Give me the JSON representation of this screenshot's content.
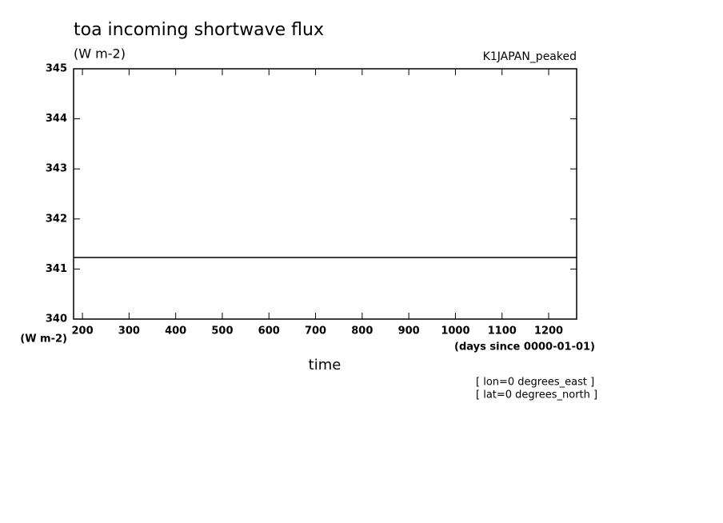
{
  "chart_data": {
    "type": "line",
    "title": "toa incoming shortwave flux",
    "subtitle": "(W m-2)",
    "dataset": "K1JAPAN_peaked",
    "y_label": "(W m-2)",
    "x_units": "(days since 0000-01-01)",
    "x_label": "time",
    "annotations": [
      "[ lon=0 degrees_east ]",
      "[ lat=0 degrees_north ]"
    ],
    "x": [
      181,
      1260
    ],
    "values": [
      341.23,
      341.23
    ],
    "color": "#000000",
    "xlim": [
      181,
      1260
    ],
    "xticks": [
      200,
      300,
      400,
      500,
      600,
      700,
      800,
      900,
      1000,
      1100,
      1200
    ],
    "ylim": [
      340,
      345
    ],
    "yticks": [
      340,
      341,
      342,
      343,
      344,
      345
    ]
  }
}
